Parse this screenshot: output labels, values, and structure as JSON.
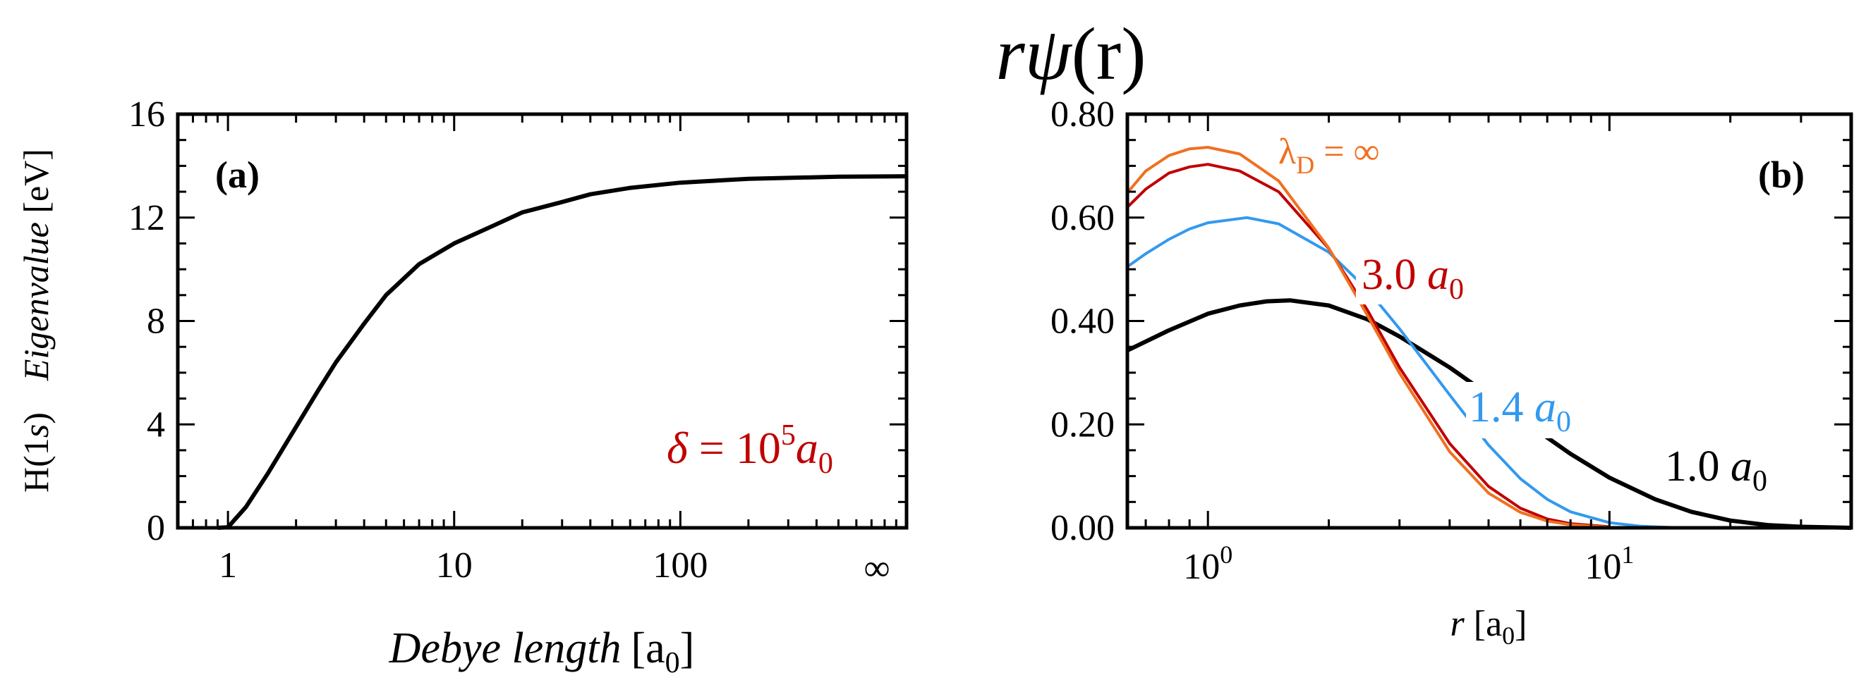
{
  "figure_title": {
    "prefix": "r",
    "greek": "ψ",
    "args": "(r)"
  },
  "colors": {
    "black": "#000000",
    "red": "#c00000",
    "orange": "#f07020",
    "blue": "#3399ee"
  },
  "chart_data": [
    {
      "type": "line",
      "panel_label": "(a)",
      "title": "",
      "xscale": "log",
      "xlim": [
        0.6,
        1000
      ],
      "ylim": [
        0,
        16
      ],
      "xticks": [
        1,
        10,
        100
      ],
      "xtick_labels": [
        "1",
        "10",
        "100"
      ],
      "xtick_extra_label": "∞",
      "yticks": [
        0,
        4,
        8,
        12,
        16
      ],
      "ytick_labels": [
        "0",
        "4",
        "8",
        "12",
        "16"
      ],
      "xlabel": {
        "main": "Debye length",
        "unit": "[a",
        "sub": "0",
        "close": "]"
      },
      "ylabel": {
        "part1": "H(1",
        "part2": "s",
        "part3": ")  ",
        "part4": "Eigenvalue",
        "part5": " [eV]"
      },
      "annotation": {
        "delta": "δ",
        "eq": " = 10",
        "exp": "5",
        "a": "a",
        "sub": "0",
        "color": "#c00000"
      },
      "series": [
        {
          "name": "H(1s) eigenvalue",
          "color": "#000000",
          "x": [
            0.9,
            1.0,
            1.2,
            1.5,
            2.0,
            2.5,
            3.0,
            4.0,
            5.0,
            7.0,
            10,
            15,
            20,
            30,
            40,
            60,
            100,
            200,
            500,
            1000
          ],
          "y": [
            0,
            0.02,
            0.8,
            2.1,
            3.9,
            5.3,
            6.4,
            7.9,
            9.0,
            10.2,
            11.0,
            11.7,
            12.2,
            12.6,
            12.9,
            13.15,
            13.35,
            13.5,
            13.58,
            13.6
          ]
        }
      ]
    },
    {
      "type": "line",
      "panel_label": "(b)",
      "title": "",
      "xscale": "log",
      "xlim": [
        0.63,
        40
      ],
      "ylim": [
        0,
        0.8
      ],
      "xticks": [
        1,
        10
      ],
      "xtick_labels": [
        {
          "base": "10",
          "exp": "0"
        },
        {
          "base": "10",
          "exp": "1"
        }
      ],
      "yticks": [
        0,
        0.2,
        0.4,
        0.6,
        0.8
      ],
      "ytick_labels": [
        "0.00",
        "0.20",
        "0.40",
        "0.60",
        "0.80"
      ],
      "xlabel": {
        "main": "r",
        "unit": " [a",
        "sub": "0",
        "close": "]"
      },
      "series": [
        {
          "name": "λD = ∞",
          "label": {
            "lambda": "λ",
            "sub": "D",
            "rest": " = ∞"
          },
          "color": "#f07020",
          "x": [
            0.63,
            0.7,
            0.8,
            0.9,
            1.0,
            1.2,
            1.5,
            2.0,
            2.5,
            3.0,
            4.0,
            5.0,
            6.0,
            7.0,
            8.0,
            10
          ],
          "y": [
            0.648,
            0.69,
            0.72,
            0.733,
            0.736,
            0.723,
            0.671,
            0.541,
            0.41,
            0.299,
            0.147,
            0.067,
            0.03,
            0.013,
            0.006,
            0.001
          ]
        },
        {
          "name": "3.0 a0",
          "label": {
            "num": "3.0 ",
            "a": "a",
            "sub": "0"
          },
          "color": "#c00000",
          "x": [
            0.63,
            0.7,
            0.8,
            0.9,
            1.0,
            1.2,
            1.5,
            2.0,
            2.5,
            3.0,
            4.0,
            5.0,
            6.0,
            7.0,
            8.0,
            10
          ],
          "y": [
            0.62,
            0.655,
            0.686,
            0.698,
            0.703,
            0.69,
            0.65,
            0.54,
            0.42,
            0.31,
            0.163,
            0.08,
            0.038,
            0.017,
            0.008,
            0.002
          ]
        },
        {
          "name": "1.4 a0",
          "label": {
            "num": "1.4 ",
            "a": "a",
            "sub": "0"
          },
          "color": "#3399ee",
          "x": [
            0.63,
            0.7,
            0.8,
            0.9,
            1.0,
            1.25,
            1.5,
            2.0,
            2.5,
            3.0,
            4.0,
            5.0,
            6.0,
            7.0,
            8.0,
            10,
            12,
            15
          ],
          "y": [
            0.505,
            0.53,
            0.558,
            0.578,
            0.59,
            0.6,
            0.588,
            0.533,
            0.46,
            0.385,
            0.257,
            0.16,
            0.095,
            0.055,
            0.031,
            0.01,
            0.003,
            0.0
          ]
        },
        {
          "name": "1.0 a0",
          "label": {
            "num": "1.0 ",
            "a": "a",
            "sub": "0"
          },
          "color": "#000000",
          "x": [
            0.63,
            0.8,
            1.0,
            1.2,
            1.4,
            1.6,
            2.0,
            2.5,
            3.0,
            4.0,
            5.0,
            6.0,
            8.0,
            10,
            13,
            16,
            20,
            25,
            30,
            40
          ],
          "y": [
            0.343,
            0.382,
            0.414,
            0.43,
            0.438,
            0.44,
            0.43,
            0.403,
            0.37,
            0.31,
            0.257,
            0.211,
            0.143,
            0.097,
            0.055,
            0.031,
            0.014,
            0.005,
            0.002,
            0.0
          ]
        }
      ]
    }
  ]
}
